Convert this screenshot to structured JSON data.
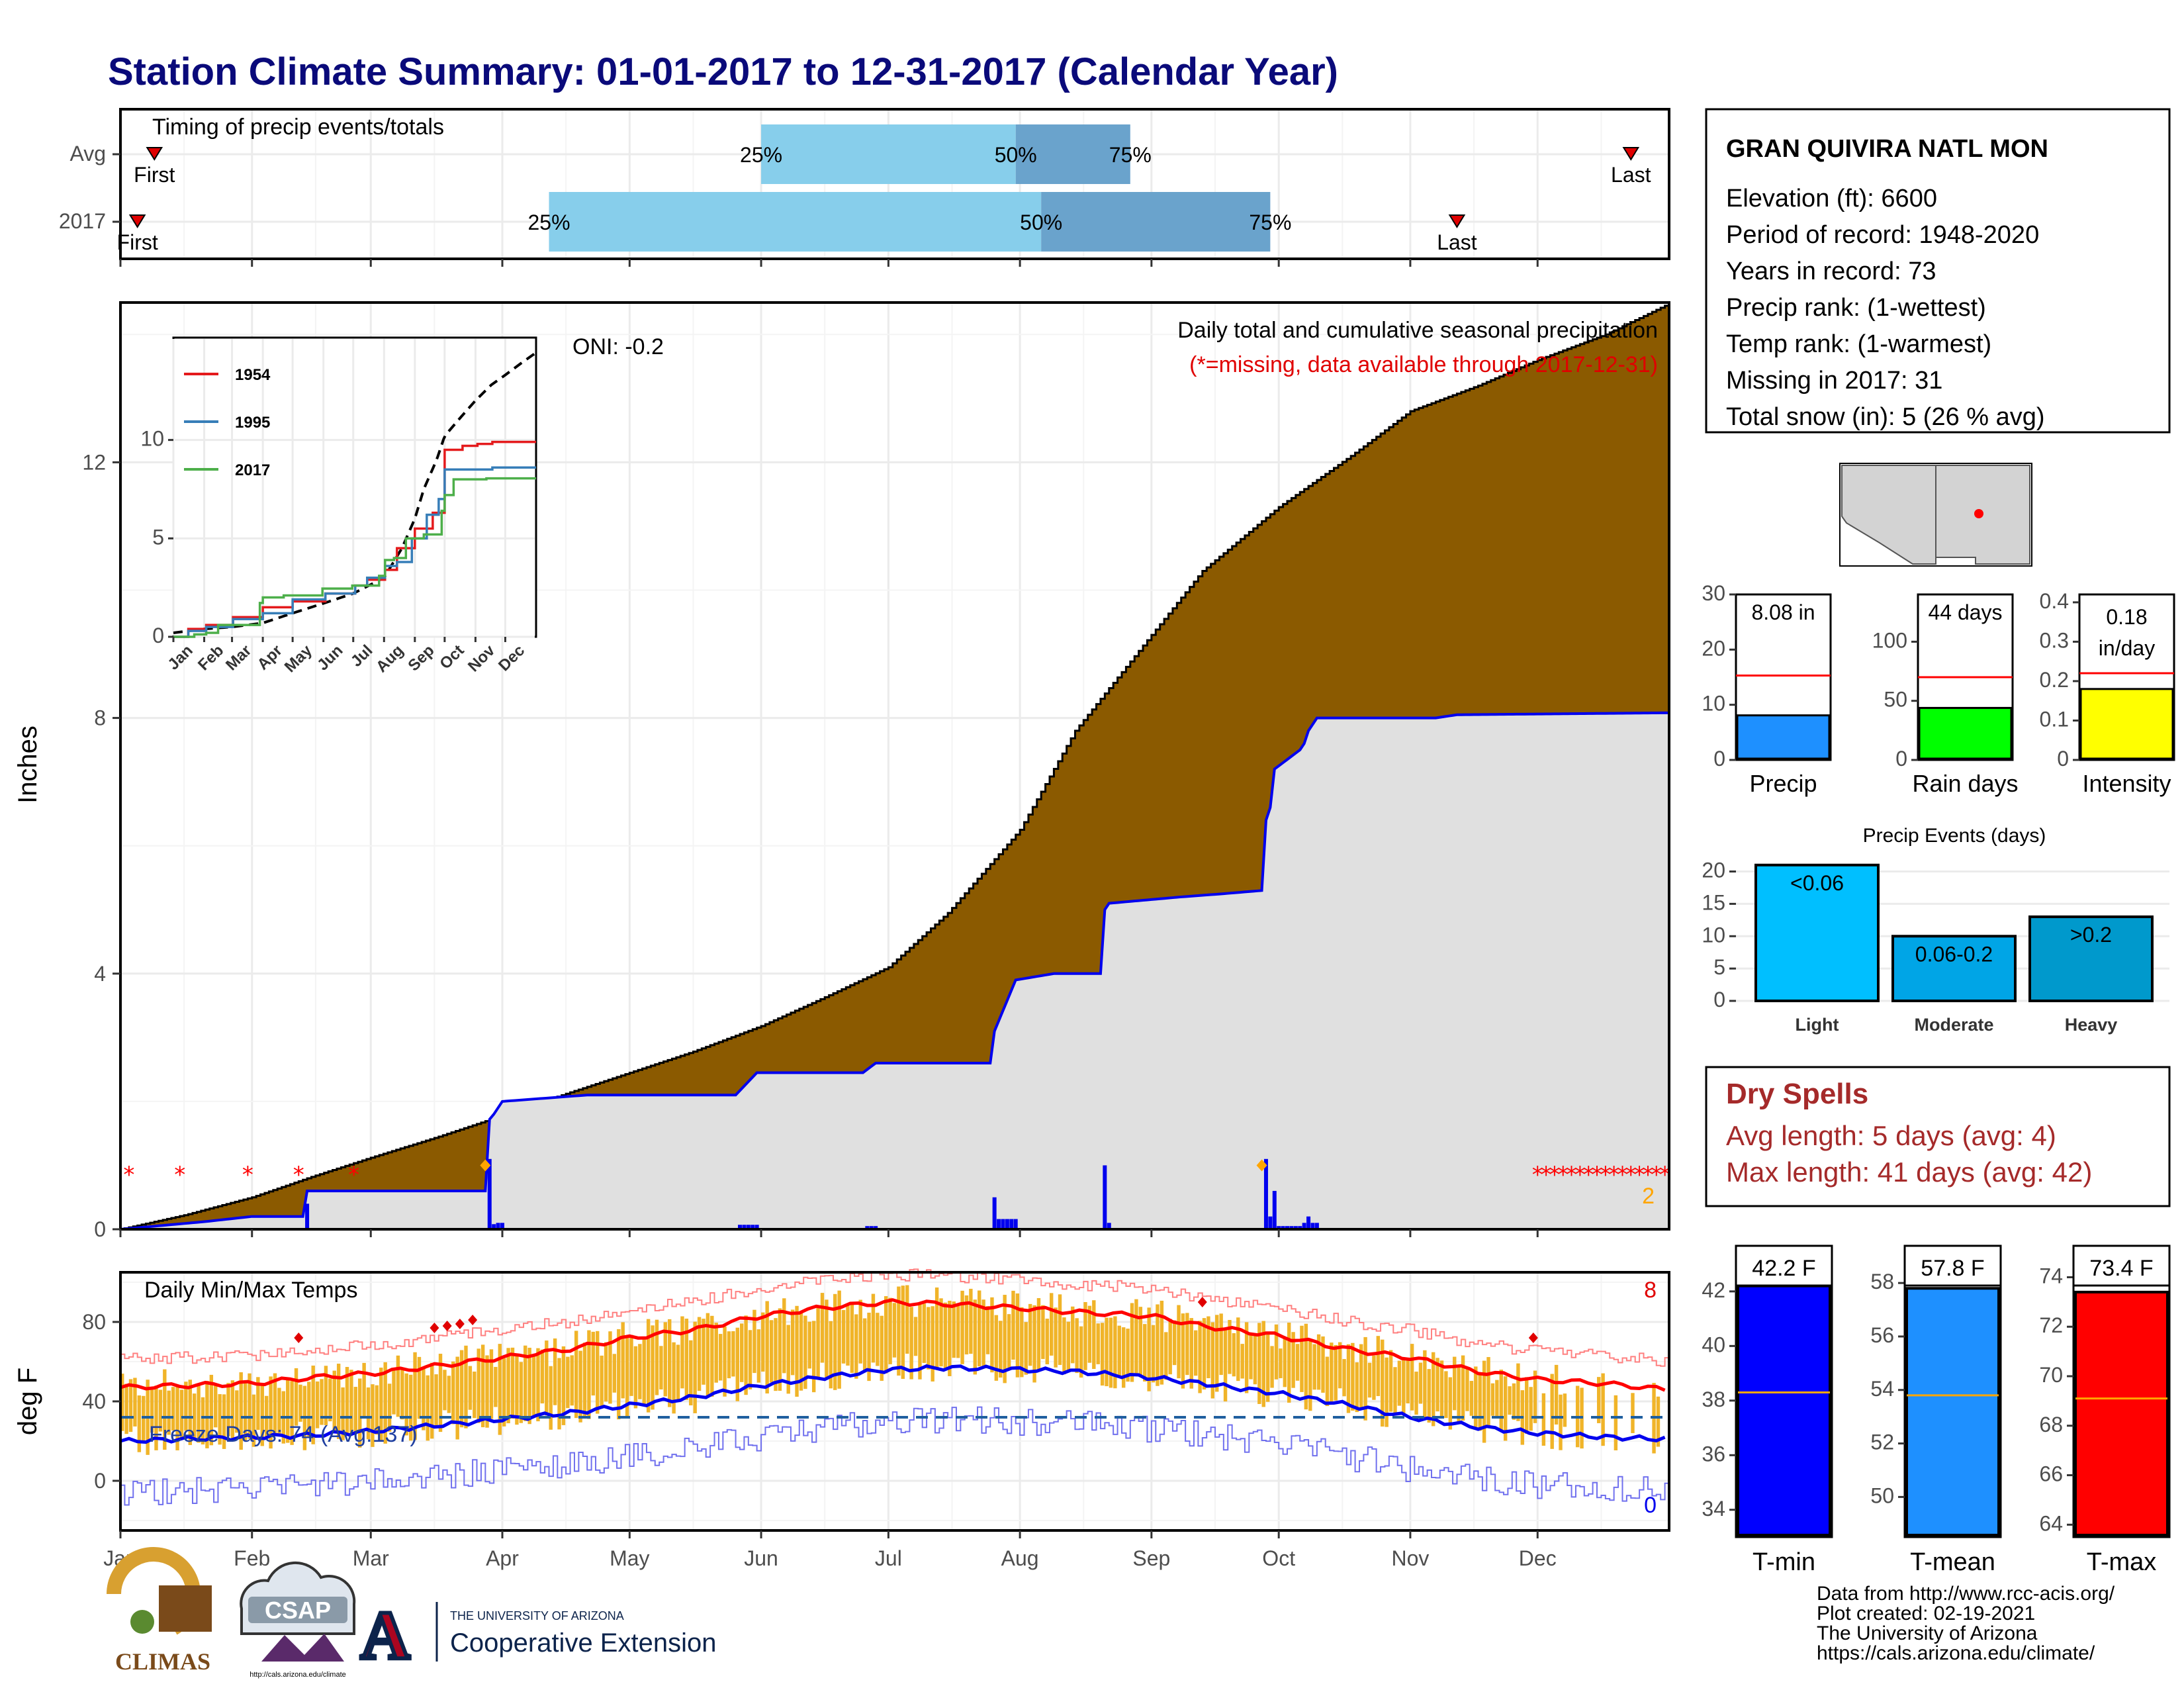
{
  "page": {
    "title": "Station Climate Summary: 01-01-2017 to 12-31-2017 (Calendar Year)"
  },
  "timing": {
    "label": "Timing of precip events/totals",
    "rows": [
      {
        "name": "Avg",
        "p25": "Jun 1",
        "p50": "Jul 31",
        "p75": "Aug 27",
        "first": "Jan 9",
        "last": "Dec 23"
      },
      {
        "name": "2017",
        "p25": "Apr 12",
        "p50": "Aug 6",
        "p75": "Sep 29",
        "first": "Jan 5",
        "last": "Nov 12"
      }
    ],
    "labels": {
      "p25": "25%",
      "p50": "50%",
      "p75": "75%",
      "first": "First",
      "last": "Last"
    },
    "colors": {
      "q1": "#87ceeb",
      "q2": "#6aa3cc",
      "marker": "#e00000"
    }
  },
  "station": {
    "name": "GRAN QUIVIRA NATL MON",
    "lines": [
      "Elevation (ft): 6600",
      "Period of record: 1948-2020",
      "Years in record: 73",
      "Precip rank:  (1-wettest)",
      "Temp rank:  (1-warmest)",
      "Missing in 2017: 31",
      "Total snow (in): 5 (26 % avg)"
    ]
  },
  "precip": {
    "ylabel": "Inches",
    "caption": "Daily total and cumulative seasonal precipitation",
    "caption_note": "(*=missing, data available through 2017-12-31)",
    "oni": "ONI: -0.2",
    "count_label": "2",
    "month_labels": [
      "Jan",
      "Feb",
      "Mar",
      "Apr",
      "May",
      "Jun",
      "Jul",
      "Aug",
      "Sep",
      "Oct",
      "Nov",
      "Dec"
    ],
    "colors": {
      "avg_fill": "#8b5a00",
      "obs_fill": "#e0e0e0",
      "obs_line": "#0000ee",
      "daily_bar": "#0000ee",
      "missing": "#ff0000",
      "extreme": "#ffa500"
    }
  },
  "inset": {
    "legend": [
      {
        "name": "1954",
        "color": "#e41a1c"
      },
      {
        "name": "1995",
        "color": "#377eb8"
      },
      {
        "name": "2017",
        "color": "#4daf4a"
      }
    ],
    "month_labels": [
      "Jan",
      "Feb",
      "Mar",
      "Apr",
      "May",
      "Jun",
      "Jul",
      "Aug",
      "Sep",
      "Oct",
      "Nov",
      "Dec"
    ]
  },
  "temps": {
    "ylabel": "deg F",
    "label": "Daily Min/Max Temps",
    "freeze": "Freeze Days: 74 (Avg:137)",
    "count_hi": "8",
    "count_lo": "0",
    "colors": {
      "bar": "#f0b429",
      "max_avg": "#ff0000",
      "min_avg": "#0000ee",
      "freeze_line": "#1f5f9f"
    }
  },
  "stats": {
    "panels": [
      {
        "label": "Precip",
        "value_text": "8.08 in",
        "value": 8.08,
        "avg": 15.3,
        "ymax": 30,
        "ticks": [
          0,
          10,
          20,
          30
        ],
        "color": "#1e90ff"
      },
      {
        "label": "Rain days",
        "value_text": "44 days",
        "value": 44,
        "avg": 70,
        "ymax": 140,
        "ticks": [
          0,
          50,
          100
        ],
        "color": "#00ff00"
      },
      {
        "label": "Intensity",
        "value_text": "0.18",
        "value_text2": "in/day",
        "value": 0.18,
        "avg": 0.22,
        "ymax": 0.42,
        "ticks": [
          0.0,
          0.1,
          0.2,
          0.3,
          0.4
        ],
        "color": "#ffff00"
      }
    ]
  },
  "events": {
    "title": "Precip Events (days)",
    "ticks": [
      0,
      5,
      10,
      15,
      20
    ],
    "bars": [
      {
        "label": "Light",
        "inner": "<0.06",
        "value": 21,
        "color": "#00bfff"
      },
      {
        "label": "Moderate",
        "inner": "0.06-0.2",
        "value": 10,
        "color": "#00a5e6"
      },
      {
        "label": "Heavy",
        "inner": ">0.2",
        "value": 13,
        "color": "#0099cc"
      }
    ]
  },
  "dry": {
    "title": "Dry Spells",
    "avg": "Avg length: 5 days (avg: 4)",
    "max": "Max length: 41 days (avg: 42)",
    "color": "#a52a2a"
  },
  "temp_bars": [
    {
      "label": "T-min",
      "value_text": "42.2 F",
      "value": 42.2,
      "avg": 38.3,
      "ylim": [
        33,
        42.7
      ],
      "ticks": [
        34,
        36,
        38,
        40,
        42
      ],
      "color": "#0000ff"
    },
    {
      "label": "T-mean",
      "value_text": "57.8 F",
      "value": 57.8,
      "avg": 53.8,
      "ylim": [
        48.5,
        58.4
      ],
      "ticks": [
        50,
        52,
        54,
        56,
        58
      ],
      "color": "#1e90ff"
    },
    {
      "label": "T-max",
      "value_text": "73.4 F",
      "value": 73.4,
      "avg": 69.1,
      "ylim": [
        63.5,
        74.2
      ],
      "ticks": [
        64,
        66,
        68,
        70,
        72,
        74
      ],
      "color": "#ff0000"
    }
  ],
  "footer": {
    "lines": [
      "Data from http://www.rcc-acis.org/",
      "Plot created: 02-19-2021",
      "The University of Arizona",
      "https://cals.arizona.edu/climate/"
    ],
    "climas": "CLIMAS",
    "csap": "CSAP",
    "csap_url": "http://cals.arizona.edu/climate",
    "ua_line1": "THE UNIVERSITY OF ARIZONA",
    "ua_line2": "Cooperative Extension",
    "ua_letter": "A"
  },
  "chart_data": [
    {
      "type": "bar",
      "title": "Timing of precip events/totals",
      "categories": [
        "Avg",
        "2017"
      ],
      "series": [
        {
          "name": "25%",
          "values": [
            "Jun 1",
            "Apr 12"
          ]
        },
        {
          "name": "50%",
          "values": [
            "Jul 31",
            "Aug 6"
          ]
        },
        {
          "name": "75%",
          "values": [
            "Aug 27",
            "Sep 29"
          ]
        },
        {
          "name": "First",
          "values": [
            "Jan 9",
            "Jan 5"
          ]
        },
        {
          "name": "Last",
          "values": [
            "Dec 23",
            "Nov 12"
          ]
        }
      ],
      "xlim": [
        "Jan 1",
        "Dec 31"
      ]
    },
    {
      "type": "area",
      "title": "Daily total and cumulative seasonal precipitation",
      "ylabel": "Inches",
      "ylim": [
        0,
        14.5
      ],
      "yticks": [
        0,
        4,
        8,
        12
      ],
      "series": [
        {
          "x": [
            0,
            15,
            31,
            45,
            59,
            75,
            90,
            105,
            120,
            135,
            151,
            165,
            181,
            195,
            212,
            225,
            243,
            255,
            273,
            290,
            304,
            320,
            334,
            350,
            364
          ],
          "y": [
            0.0,
            0.22,
            0.5,
            0.82,
            1.12,
            1.45,
            1.78,
            2.12,
            2.45,
            2.78,
            3.18,
            3.6,
            4.1,
            4.95,
            6.25,
            7.8,
            9.3,
            10.3,
            11.3,
            12.1,
            12.8,
            13.2,
            13.6,
            14.0,
            14.45
          ]
        },
        {
          "x": [
            0,
            20,
            31,
            43,
            44,
            86,
            87,
            88,
            90,
            100,
            110,
            145,
            150,
            175,
            178,
            205,
            206,
            211,
            220,
            231,
            232,
            233,
            250,
            260,
            269,
            270,
            271,
            272,
            278,
            279,
            280,
            282,
            310,
            315,
            364
          ],
          "y": [
            0.0,
            0.12,
            0.2,
            0.2,
            0.6,
            0.6,
            1.72,
            1.8,
            2.0,
            2.05,
            2.1,
            2.1,
            2.45,
            2.45,
            2.6,
            2.6,
            3.1,
            3.9,
            4.0,
            4.0,
            5.0,
            5.1,
            5.2,
            5.25,
            5.3,
            6.4,
            6.6,
            7.2,
            7.5,
            7.6,
            7.8,
            8.0,
            8.0,
            8.05,
            8.08
          ]
        }
      ]
    },
    {
      "type": "line",
      "title": "",
      "legend": [
        "1954",
        "1995",
        "2017"
      ],
      "yticks": [
        0,
        5,
        10
      ],
      "x_categories": [
        "Jan",
        "Feb",
        "Mar",
        "Apr",
        "May",
        "Jun",
        "Jul",
        "Aug",
        "Sep",
        "Oct",
        "Nov",
        "Dec"
      ],
      "series": [
        {
          "x": [
            0,
            31,
            59,
            90,
            120,
            151,
            181,
            212,
            230,
            243,
            252,
            265,
            273,
            290,
            304,
            320,
            334,
            350,
            364
          ],
          "y": [
            0.2,
            0.4,
            0.5,
            0.7,
            1.2,
            1.7,
            2.2,
            3.0,
            4.5,
            6.0,
            7.5,
            9.0,
            10.2,
            11.2,
            12.0,
            12.8,
            13.3,
            13.9,
            14.4
          ]
        },
        {
          "x": [
            0,
            15,
            31,
            59,
            90,
            120,
            151,
            181,
            195,
            212,
            225,
            243,
            260,
            273,
            290,
            304,
            320,
            334,
            364
          ],
          "y": [
            0.0,
            0.4,
            0.6,
            1.0,
            1.5,
            1.8,
            2.2,
            2.6,
            2.9,
            3.4,
            4.5,
            5.5,
            6.3,
            9.5,
            9.7,
            9.8,
            9.9,
            9.9,
            10.0
          ]
        },
        {
          "x": [
            0,
            15,
            31,
            59,
            90,
            120,
            151,
            181,
            195,
            212,
            225,
            240,
            255,
            265,
            273,
            290,
            304,
            320,
            364
          ],
          "y": [
            0.0,
            0.3,
            0.5,
            0.9,
            1.2,
            1.9,
            2.2,
            2.6,
            3.0,
            3.6,
            3.8,
            5.0,
            6.2,
            7.0,
            8.5,
            8.5,
            8.5,
            8.6,
            8.6
          ]
        },
        {
          "x": [
            0,
            20,
            31,
            43,
            44,
            86,
            87,
            90,
            110,
            145,
            150,
            175,
            178,
            205,
            206,
            211,
            220,
            231,
            232,
            250,
            269,
            270,
            272,
            282,
            310,
            315,
            364
          ],
          "y": [
            0.0,
            0.12,
            0.2,
            0.2,
            0.6,
            0.6,
            1.72,
            2.0,
            2.1,
            2.1,
            2.45,
            2.45,
            2.6,
            2.6,
            3.1,
            3.9,
            4.0,
            4.0,
            5.0,
            5.2,
            5.3,
            6.4,
            7.2,
            8.0,
            8.0,
            8.05,
            8.08
          ]
        }
      ]
    },
    {
      "type": "line",
      "title": "Daily Min/Max Temps",
      "ylabel": "deg F",
      "ylim": [
        -25,
        105
      ],
      "yticks": [
        0,
        40,
        80
      ],
      "series": [
        {
          "name": "avg max",
          "x": [
            0,
            15,
            31,
            45,
            59,
            75,
            90,
            105,
            120,
            135,
            151,
            165,
            181,
            195,
            212,
            225,
            243,
            255,
            273,
            290,
            304,
            320,
            334,
            350,
            364
          ],
          "y": [
            47,
            48,
            49,
            52,
            54,
            58,
            62,
            66,
            72,
            76,
            83,
            87,
            90,
            89,
            87,
            85,
            83,
            78,
            73,
            66,
            62,
            55,
            51,
            49,
            46
          ]
        },
        {
          "name": "avg min",
          "x": [
            0,
            15,
            31,
            45,
            59,
            75,
            90,
            105,
            120,
            135,
            151,
            165,
            181,
            195,
            212,
            225,
            243,
            255,
            273,
            290,
            304,
            320,
            334,
            350,
            364
          ],
          "y": [
            20,
            21,
            22,
            23,
            25,
            28,
            31,
            34,
            38,
            42,
            48,
            52,
            56,
            57,
            56,
            55,
            52,
            49,
            44,
            38,
            32,
            27,
            24,
            22,
            21
          ]
        },
        {
          "name": "freeze line",
          "x": [
            0,
            364
          ],
          "y": [
            32,
            32
          ]
        }
      ]
    },
    {
      "type": "bar",
      "title": "Precip Events (days)",
      "categories": [
        "Light",
        "Moderate",
        "Heavy"
      ],
      "values": [
        21,
        10,
        13
      ],
      "ylim": [
        0,
        20
      ]
    }
  ]
}
